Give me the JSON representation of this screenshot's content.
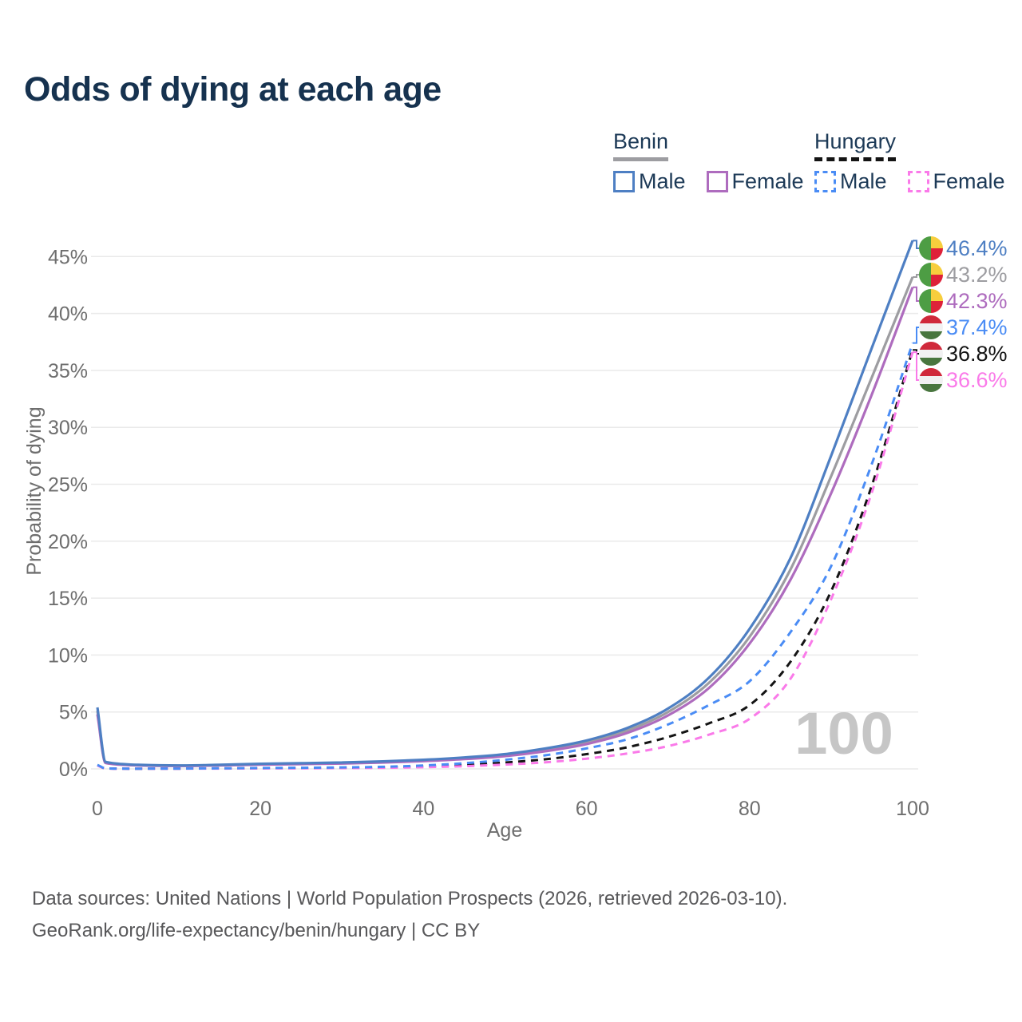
{
  "page": {
    "title": "Odds of dying at each age"
  },
  "legend": {
    "benin": {
      "label": "Benin",
      "male": "Male",
      "female": "Female"
    },
    "hungary": {
      "label": "Hungary",
      "male": "Male",
      "female": "Female"
    }
  },
  "watermark": "100",
  "footer": {
    "line1": "Data sources: United Nations | World Population Prospects (2026, retrieved 2026-03-10).",
    "line2": "GeoRank.org/life-expectancy/benin/hungary | CC BY"
  },
  "chart_data": {
    "type": "line",
    "title": "Odds of dying at each age",
    "xlabel": "Age",
    "ylabel": "Probability of dying",
    "xlim": [
      0,
      100
    ],
    "ylim": [
      0,
      47
    ],
    "x_ticks": [
      0,
      20,
      40,
      60,
      80,
      100
    ],
    "y_ticks": [
      0,
      5,
      10,
      15,
      20,
      25,
      30,
      35,
      40,
      45
    ],
    "y_tick_suffix": "%",
    "grid": true,
    "legend_position": "top-right",
    "ages": [
      0,
      1,
      2,
      5,
      10,
      15,
      20,
      25,
      30,
      35,
      40,
      45,
      50,
      55,
      60,
      65,
      70,
      75,
      80,
      85,
      90,
      95,
      100
    ],
    "series": [
      {
        "key": "benin-male",
        "country": "benin",
        "name": "Benin Male",
        "color": "#4e7fc3",
        "dashed": false,
        "end_label": "46.4%",
        "values": [
          5.4,
          0.62,
          0.5,
          0.36,
          0.3,
          0.36,
          0.45,
          0.5,
          0.56,
          0.66,
          0.8,
          1.0,
          1.3,
          1.8,
          2.5,
          3.6,
          5.3,
          8.0,
          12.3,
          18.5,
          27.5,
          37.0,
          46.4
        ]
      },
      {
        "key": "benin-both",
        "country": "benin",
        "name": "Benin",
        "color": "#9d9da1",
        "dashed": false,
        "end_label": "43.2%",
        "values": [
          5.1,
          0.57,
          0.46,
          0.33,
          0.28,
          0.33,
          0.41,
          0.46,
          0.51,
          0.61,
          0.74,
          0.93,
          1.21,
          1.68,
          2.34,
          3.38,
          5.0,
          7.55,
          11.6,
          17.5,
          25.7,
          34.4,
          43.2
        ]
      },
      {
        "key": "benin-female",
        "country": "benin",
        "name": "Benin Female",
        "color": "#ae6cbe",
        "dashed": false,
        "end_label": "42.3%",
        "values": [
          4.8,
          0.52,
          0.42,
          0.31,
          0.26,
          0.3,
          0.37,
          0.42,
          0.47,
          0.56,
          0.68,
          0.86,
          1.12,
          1.56,
          2.18,
          3.16,
          4.7,
          7.1,
          11.0,
          16.6,
          24.2,
          32.9,
          42.3
        ]
      },
      {
        "key": "hungary-male",
        "country": "hungary",
        "name": "Hungary Male",
        "color": "#4a8cf5",
        "dashed": true,
        "end_label": "37.4%",
        "values": [
          0.35,
          0.05,
          0.03,
          0.02,
          0.03,
          0.05,
          0.08,
          0.1,
          0.13,
          0.18,
          0.3,
          0.5,
          0.8,
          1.2,
          1.8,
          2.6,
          3.9,
          5.6,
          7.7,
          12.0,
          17.8,
          26.8,
          37.4
        ]
      },
      {
        "key": "hungary-both",
        "country": "hungary",
        "name": "Hungary",
        "color": "#141414",
        "dashed": true,
        "end_label": "36.8%",
        "values": [
          0.32,
          0.04,
          0.03,
          0.02,
          0.03,
          0.04,
          0.06,
          0.08,
          0.1,
          0.14,
          0.22,
          0.36,
          0.56,
          0.85,
          1.3,
          1.9,
          2.8,
          4.0,
          5.6,
          9.4,
          15.6,
          24.9,
          36.8
        ]
      },
      {
        "key": "hungary-female",
        "country": "hungary",
        "name": "Hungary Female",
        "color": "#fa7ae9",
        "dashed": true,
        "end_label": "36.6%",
        "values": [
          0.3,
          0.04,
          0.02,
          0.02,
          0.02,
          0.03,
          0.04,
          0.05,
          0.07,
          0.1,
          0.15,
          0.24,
          0.38,
          0.58,
          0.9,
          1.35,
          2.0,
          3.0,
          4.4,
          7.9,
          14.9,
          24.3,
          36.6
        ]
      }
    ],
    "flag_colors": {
      "benin": {
        "green": "#4d9d44",
        "yellow": "#f7ce3d",
        "red": "#de2139"
      },
      "hungary": {
        "red": "#d0293b",
        "white": "#f1f1f2",
        "green": "#49763f"
      }
    }
  }
}
